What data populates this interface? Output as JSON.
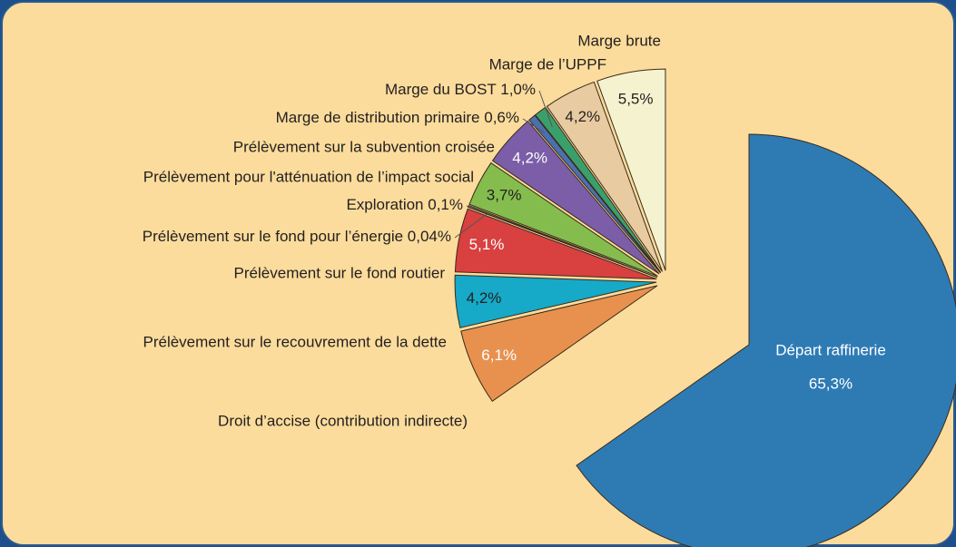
{
  "chart_data": {
    "type": "pie",
    "categories": [
      "Départ raffinerie",
      "Droit d’accise (contribution indirecte)",
      "Prélèvement sur le recouvrement de la dette",
      "Prélèvement sur le fond routier",
      "Prélèvement sur le fond pour l’énergie",
      "Exploration",
      "Prélèvement pour l'atténuation de l’impact social",
      "Prélèvement sur la subvention croisée",
      "Marge de distribution primaire",
      "Marge du BOST",
      "Marge de l’UPPF",
      "Marge brute"
    ],
    "values": [
      65.3,
      6.1,
      4.2,
      5.1,
      0.04,
      0.1,
      3.7,
      4.2,
      0.6,
      1.0,
      4.2,
      5.5
    ],
    "value_labels": [
      "65,3%",
      "6,1%",
      "4,2%",
      "5,1%",
      "0,04%",
      "0,1%",
      "3,7%",
      "4,2%",
      "0,6%",
      "1,0%",
      "4,2%",
      "5,5%"
    ],
    "colors": [
      "#2e7bb4",
      "#e8914f",
      "#16a9c8",
      "#d94040",
      "#3a3a3a",
      "#f3d6a0",
      "#84bd4e",
      "#7b5ea7",
      "#4c6fb0",
      "#3aa06b",
      "#e8cba0",
      "#f5f2d0"
    ]
  }
}
